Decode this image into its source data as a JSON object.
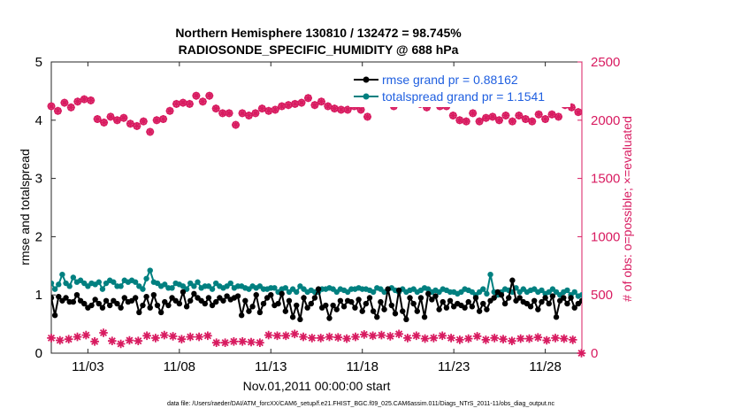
{
  "chart_data": {
    "type": "line",
    "title": [
      "Northern Hemisphere 130810 / 132472 = 98.745%",
      "RADIOSONDE_SPECIFIC_HUMIDITY @ 688 hPa"
    ],
    "xlabel": "Nov.01,2011 00:00:00 start",
    "ylabel_left": "rmse and totalspread",
    "ylabel_right": "# of obs: o=possible; ×=evaluated",
    "footnote": "data file: /Users/raeder/DAI/ATM_forcXX/CAM6_setup/f.e21.FHIST_BGC.f09_025.CAM6assim.011/Diags_NTrS_2011-11/obs_diag_output.nc",
    "xlim": [
      1.0,
      30.0
    ],
    "ylim_left": [
      0,
      5
    ],
    "ylim_right": [
      0,
      2500
    ],
    "x_ticks": [
      3,
      8,
      13,
      18,
      23,
      28
    ],
    "x_tick_labels": [
      "11/03",
      "11/08",
      "11/13",
      "11/18",
      "11/23",
      "11/28"
    ],
    "y_ticks_left": [
      0,
      1,
      2,
      3,
      4,
      5
    ],
    "y_ticks_right": [
      0,
      500,
      1000,
      1500,
      2000,
      2500
    ],
    "colors": {
      "rmse": "#000000",
      "totalspread": "#008080",
      "obs": "#d81b60",
      "legend_text": "#1f5fe0",
      "right_axis": "#d81b60"
    },
    "series": [
      {
        "name": "rmse grand pr = 0.88162",
        "axis": "left",
        "values": [
          0.95,
          0.65,
          0.97,
          0.9,
          0.95,
          0.88,
          0.88,
          1.0,
          0.9,
          0.85,
          0.78,
          0.82,
          0.92,
          0.85,
          0.78,
          0.9,
          0.82,
          0.9,
          0.85,
          0.78,
          0.95,
          0.88,
          0.9,
          0.95,
          0.7,
          0.82,
          0.97,
          0.78,
          1.0,
          0.82,
          0.7,
          0.88,
          0.82,
          0.95,
          0.9,
          0.85,
          1.05,
          0.8,
          0.9,
          1.02,
          0.95,
          0.9,
          0.85,
          0.95,
          0.82,
          0.88,
          0.95,
          0.9,
          0.98,
          0.92,
          0.95,
          0.98,
          0.65,
          0.9,
          0.72,
          0.8,
          1.0,
          0.7,
          0.85,
          0.95,
          1.0,
          0.82,
          0.85,
          1.02,
          0.72,
          0.9,
          0.62,
          0.82,
          0.58,
          0.95,
          0.78,
          0.85,
          0.95,
          1.1,
          0.78,
          0.82,
          0.6,
          0.82,
          0.75,
          0.9,
          0.8,
          0.9,
          0.88,
          0.78,
          0.92,
          0.72,
          0.85,
          0.95,
          0.72,
          0.62,
          0.88,
          0.75,
          1.1,
          0.82,
          0.68,
          1.08,
          0.72,
          0.58,
          0.95,
          0.85,
          0.72,
          0.95,
          0.62,
          1.02,
          0.92,
          0.98,
          0.75,
          0.88,
          0.78,
          0.9,
          0.8,
          0.85,
          0.82,
          0.78,
          0.88,
          0.8,
          0.95,
          0.72,
          0.85,
          0.75,
          0.9,
          0.95,
          1.05,
          1.0,
          0.85,
          0.95,
          1.25,
          0.9,
          0.95,
          0.88,
          0.85,
          0.8,
          0.9,
          0.75,
          0.88,
          0.95,
          0.85,
          0.98,
          0.62,
          0.9,
          0.95,
          0.85,
          0.95,
          0.78,
          0.85,
          0.9,
          0.68,
          0.6
        ],
        "x_start": 1.0,
        "x_step": 0.2
      },
      {
        "name": "totalspread grand pr = 1.1541",
        "axis": "left",
        "values": [
          1.2,
          1.1,
          1.18,
          1.35,
          1.2,
          1.15,
          1.3,
          1.22,
          1.25,
          1.2,
          1.15,
          1.2,
          1.18,
          1.22,
          1.1,
          1.2,
          1.25,
          1.22,
          1.15,
          1.15,
          1.25,
          1.22,
          1.25,
          1.22,
          1.15,
          1.1,
          1.28,
          1.42,
          1.22,
          1.2,
          1.15,
          1.18,
          1.12,
          1.12,
          1.2,
          1.18,
          1.15,
          1.1,
          1.2,
          1.15,
          1.22,
          1.12,
          1.15,
          1.15,
          1.1,
          1.2,
          1.15,
          1.12,
          1.15,
          1.2,
          1.12,
          1.15,
          1.15,
          1.12,
          1.1,
          1.15,
          1.12,
          1.15,
          1.1,
          1.1,
          1.12,
          1.12,
          1.05,
          1.1,
          1.12,
          1.05,
          1.1,
          1.05,
          1.15,
          1.1,
          1.05,
          1.08,
          1.05,
          1.05,
          1.1,
          1.1,
          1.12,
          1.1,
          1.05,
          1.1,
          1.08,
          1.05,
          1.1,
          1.1,
          1.12,
          1.1,
          1.1,
          1.08,
          1.05,
          1.12,
          1.1,
          1.05,
          1.1,
          1.12,
          1.08,
          1.05,
          1.1,
          1.05,
          1.08,
          1.1,
          1.05,
          1.08,
          1.12,
          1.1,
          1.05,
          1.08,
          1.05,
          1.1,
          1.08,
          1.05,
          1.05,
          1.02,
          1.05,
          1.1,
          1.08,
          1.05,
          1.0,
          1.05,
          1.1,
          1.02,
          1.35,
          1.05,
          1.0,
          1.05,
          1.1,
          1.08,
          1.05,
          1.12,
          1.05,
          1.1,
          1.05,
          1.08,
          1.1,
          1.05,
          1.08,
          1.02,
          1.05,
          1.1,
          1.05,
          1.0,
          1.05,
          1.08,
          1.0,
          1.05,
          0.98,
          1.0
        ],
        "x_start": 1.0,
        "x_step": 0.2
      },
      {
        "name": "obs possible",
        "axis": "right",
        "marker": "circle",
        "values": [
          2120,
          2080,
          2150,
          2110,
          2160,
          2180,
          2170,
          2010,
          1980,
          2030,
          2000,
          2020,
          1970,
          1950,
          1990,
          1900,
          2000,
          2010,
          2080,
          2140,
          2150,
          2140,
          2210,
          2160,
          2210,
          2100,
          2060,
          2060,
          1960,
          2060,
          2040,
          2060,
          2100,
          2080,
          2090,
          2120,
          2130,
          2140,
          2150,
          2190,
          2130,
          2160,
          2120,
          2100,
          2090,
          2090,
          2120,
          2090,
          2030,
          2150,
          2160,
          2170,
          2120,
          2150,
          2170,
          2270,
          2140,
          2110,
          2180,
          2120,
          2120,
          2040,
          2000,
          1990,
          2060,
          1990,
          2020,
          2030,
          2000,
          2040,
          1990,
          2040,
          2010,
          1990,
          2050,
          2010,
          2050,
          2030,
          2130,
          2110,
          2070
        ],
        "x_start": 1.0,
        "x_step": 0.36
      },
      {
        "name": "obs evaluated",
        "axis": "right",
        "marker": "star",
        "values": [
          130,
          110,
          120,
          140,
          155,
          100,
          175,
          105,
          80,
          110,
          105,
          150,
          130,
          155,
          145,
          120,
          140,
          140,
          150,
          90,
          90,
          100,
          100,
          95,
          90,
          155,
          150,
          150,
          165,
          140,
          130,
          130,
          140,
          135,
          125,
          140,
          160,
          150,
          155,
          145,
          165,
          130,
          150,
          125,
          130,
          150,
          130,
          115,
          125,
          145,
          115,
          130,
          120,
          105,
          125,
          125,
          135,
          110,
          130,
          125,
          115,
          0
        ],
        "x_start": 1.0,
        "x_step": 0.475
      }
    ],
    "legend": [
      {
        "label": "rmse grand pr = 0.88162",
        "color": "#000000"
      },
      {
        "label": "totalspread grand pr = 1.1541",
        "color": "#008080"
      }
    ]
  }
}
